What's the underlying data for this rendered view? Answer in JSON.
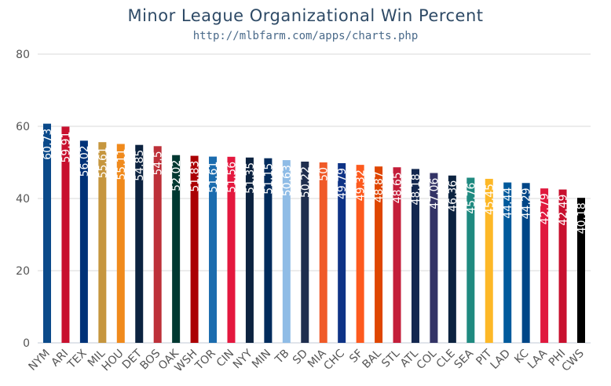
{
  "chart_data": {
    "type": "bar",
    "title": "Minor League Organizational Win Percent",
    "subtitle": "http://mlbfarm.com/apps/charts.php",
    "xlabel": "",
    "ylabel": "",
    "ylim": [
      0,
      80
    ],
    "yticks": [
      0,
      20,
      40,
      60,
      80
    ],
    "grid": true,
    "legend": "none",
    "categories": [
      "NYM",
      "ARI",
      "TEX",
      "MIL",
      "HOU",
      "DET",
      "BOS",
      "OAK",
      "WSH",
      "TOR",
      "CIN",
      "NYY",
      "MIN",
      "TB",
      "SD",
      "MIA",
      "CHC",
      "SF",
      "BAL",
      "STL",
      "ATL",
      "COL",
      "CLE",
      "SEA",
      "PIT",
      "LAD",
      "KC",
      "LAA",
      "PHI",
      "CWS"
    ],
    "values": [
      60.73,
      59.91,
      56.02,
      55.61,
      55.11,
      54.85,
      54.5,
      52.02,
      51.83,
      51.61,
      51.56,
      51.35,
      51.15,
      50.63,
      50.22,
      50,
      49.79,
      49.32,
      48.87,
      48.65,
      48.18,
      47.06,
      46.36,
      45.76,
      45.45,
      44.44,
      44.29,
      42.79,
      42.49,
      40.18
    ],
    "data_labels": [
      "60.73",
      "59.91",
      "56.02",
      "55.61",
      "55.11",
      "54.85",
      "54.5",
      "52.02",
      "51.83",
      "51.61",
      "51.56",
      "51.35",
      "51.15",
      "50.63",
      "50.22",
      "50",
      "49.79",
      "49.32",
      "48.87",
      "48.65",
      "48.18",
      "47.06",
      "46.36",
      "45.76",
      "45.45",
      "44.44",
      "44.29",
      "42.79",
      "42.49",
      "40.18"
    ],
    "colors": [
      "#0b4a8a",
      "#c8102e",
      "#003278",
      "#c6963e",
      "#f08a1c",
      "#0c2340",
      "#bd3039",
      "#003831",
      "#ab0003",
      "#1b6cae",
      "#e4183e",
      "#0c2340",
      "#002b5c",
      "#8fbce6",
      "#1f2e4e",
      "#f05a28",
      "#0e3386",
      "#fd5a1e",
      "#df4601",
      "#c41e3a",
      "#13274f",
      "#333366",
      "#0c2340",
      "#1f8a80",
      "#fdb827",
      "#005a9c",
      "#004687",
      "#e0193e",
      "#c8102e",
      "#000000"
    ]
  }
}
